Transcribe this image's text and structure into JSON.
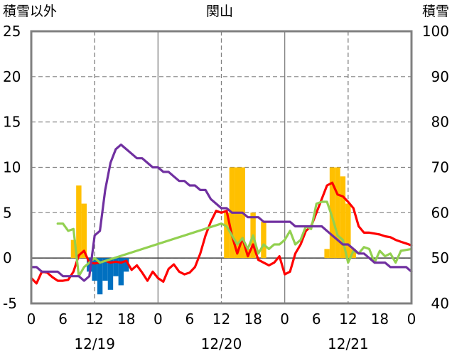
{
  "chart_data": {
    "type": "combo",
    "title": "関山",
    "left_axis_label": "積雪以外",
    "right_axis_label": "積雪",
    "left_ylim": [
      -5,
      25
    ],
    "left_ticks": [
      "-5",
      "0",
      "5",
      "10",
      "15",
      "20",
      "25"
    ],
    "right_ylim": [
      40,
      100
    ],
    "right_ticks": [
      "40",
      "50",
      "60",
      "70",
      "80",
      "90",
      "100"
    ],
    "x_range_hours": [
      0,
      72
    ],
    "x_tick_labels": [
      "0",
      "6",
      "12",
      "18",
      "0",
      "6",
      "12",
      "18",
      "0",
      "6",
      "12",
      "18",
      "0"
    ],
    "date_labels": [
      {
        "hour": 12,
        "text": "12/19"
      },
      {
        "hour": 36,
        "text": "12/20"
      },
      {
        "hour": 60,
        "text": "12/21"
      }
    ],
    "grid": "dashed horizontal every 5; dashed vertical at 12h; solid vertical at day boundaries",
    "colors": {
      "snowfall_bar": "#FFC000",
      "negative_bar": "#0070C0",
      "red_line": "#FF0000",
      "green_line": "#92D050",
      "purple_line": "#7030A0"
    },
    "series": [
      {
        "kind": "bar",
        "axis": "left",
        "color": "#FFC000",
        "x": [
          8,
          9,
          10,
          37,
          38,
          39,
          40,
          41,
          42,
          44,
          56,
          57,
          58,
          59,
          60,
          61
        ],
        "values": [
          2,
          8,
          6,
          5,
          10,
          10,
          10,
          1,
          5,
          4,
          1,
          10,
          10,
          9,
          6,
          1
        ]
      },
      {
        "kind": "bar",
        "axis": "left",
        "color": "#0070C0",
        "x": [
          11,
          12,
          13,
          14,
          15,
          16,
          17,
          18
        ],
        "values": [
          -1.5,
          -2.5,
          -4,
          -2.5,
          -3.5,
          -2,
          -3,
          -1.5
        ]
      },
      {
        "kind": "line",
        "axis": "left",
        "color": "#FF0000",
        "x": [
          0,
          1,
          2,
          3,
          4,
          5,
          6,
          7,
          8,
          9,
          10,
          11,
          12,
          13,
          14,
          15,
          16,
          17,
          18,
          19,
          20,
          21,
          22,
          23,
          24,
          25,
          26,
          27,
          28,
          29,
          30,
          31,
          32,
          33,
          34,
          35,
          36,
          37,
          38,
          39,
          40,
          41,
          42,
          43,
          44,
          45,
          46,
          47,
          48,
          49,
          50,
          51,
          52,
          53,
          54,
          55,
          56,
          57,
          58,
          59,
          60,
          61,
          62,
          63,
          64,
          65,
          66,
          67,
          68,
          69,
          70,
          71,
          72
        ],
        "values": [
          -2.2,
          -2.8,
          -1.5,
          -1.6,
          -2.1,
          -2.5,
          -2.5,
          -2.4,
          -1.5,
          0.3,
          0.8,
          -0.5,
          -0.6,
          -0.5,
          -0.3,
          -0.5,
          -0.4,
          -0.5,
          -0.3,
          -1.3,
          -0.8,
          -1.6,
          -2.5,
          -1.5,
          -2.2,
          -2.6,
          -1.2,
          -0.7,
          -1.5,
          -1.8,
          -1.6,
          -1.0,
          0.5,
          2.5,
          4.0,
          5.2,
          5.0,
          5.2,
          2.5,
          0.5,
          2.2,
          0.2,
          1.5,
          -0.2,
          -0.5,
          -0.8,
          -0.5,
          0.2,
          -1.8,
          -1.5,
          0.5,
          1.5,
          3.0,
          3.5,
          5.0,
          6.5,
          8.0,
          8.3,
          7.0,
          6.8,
          6.2,
          5.5,
          3.5,
          2.8,
          2.8,
          2.7,
          2.6,
          2.4,
          2.3,
          2.0,
          1.8,
          1.6,
          1.4
        ]
      },
      {
        "kind": "line",
        "axis": "left",
        "color": "#92D050",
        "x": [
          5,
          6,
          7,
          8,
          9,
          10,
          11,
          12,
          13,
          36,
          37,
          38,
          39,
          40,
          41,
          42,
          43,
          44,
          45,
          46,
          47,
          48,
          49,
          50,
          51,
          52,
          53,
          54,
          55,
          56,
          57,
          58,
          59,
          60,
          61,
          62,
          63,
          64,
          65,
          66,
          67,
          68,
          69,
          70,
          71,
          72
        ],
        "values": [
          3.8,
          3.8,
          3.0,
          3.2,
          -2.0,
          -1.0,
          -0.5,
          0.0,
          -0.5,
          3.8,
          3.5,
          2.5,
          1.5,
          2.2,
          1.0,
          2.5,
          0.5,
          1.5,
          1.0,
          1.5,
          1.5,
          2.0,
          3.0,
          1.5,
          2.0,
          3.5,
          3.2,
          6.0,
          6.2,
          6.2,
          4.5,
          2.5,
          2.0,
          -0.5,
          0.8,
          0.5,
          1.2,
          1.0,
          -0.5,
          0.8,
          0.2,
          0.5,
          -0.5,
          0.8,
          0.9,
          1.0
        ]
      },
      {
        "kind": "line",
        "axis": "left",
        "color": "#7030A0",
        "x": [
          0,
          1,
          2,
          3,
          4,
          5,
          6,
          7,
          8,
          9,
          10,
          11,
          12,
          13,
          14,
          15,
          16,
          17,
          18,
          19,
          20,
          21,
          22,
          23,
          24,
          25,
          26,
          27,
          28,
          29,
          30,
          31,
          32,
          33,
          34,
          35,
          36,
          37,
          38,
          39,
          40,
          41,
          42,
          43,
          44,
          45,
          46,
          47,
          48,
          49,
          50,
          51,
          52,
          53,
          54,
          55,
          56,
          57,
          58,
          59,
          60,
          61,
          62,
          63,
          64,
          65,
          66,
          67,
          68,
          69,
          70,
          71,
          72
        ],
        "values": [
          -1.0,
          -1.0,
          -1.5,
          -1.5,
          -1.5,
          -1.5,
          -2.0,
          -2.0,
          -2.0,
          -2.0,
          -2.5,
          -2.0,
          2.5,
          3.0,
          7.5,
          10.5,
          12.0,
          12.5,
          12.0,
          11.5,
          11.0,
          11.0,
          10.5,
          10.0,
          10.0,
          9.5,
          9.5,
          9.0,
          8.5,
          8.5,
          8.0,
          8.0,
          7.5,
          7.5,
          6.5,
          6.0,
          5.5,
          5.5,
          5.0,
          5.0,
          5.0,
          4.5,
          4.5,
          4.5,
          4.0,
          4.0,
          4.0,
          4.0,
          4.0,
          4.0,
          3.5,
          3.5,
          3.5,
          3.5,
          3.5,
          3.5,
          3.0,
          2.5,
          2.0,
          1.5,
          1.5,
          1.0,
          0.5,
          0.5,
          0.0,
          -0.5,
          -0.5,
          -0.5,
          -1.0,
          -1.0,
          -1.0,
          -1.0,
          -1.5
        ]
      }
    ]
  }
}
